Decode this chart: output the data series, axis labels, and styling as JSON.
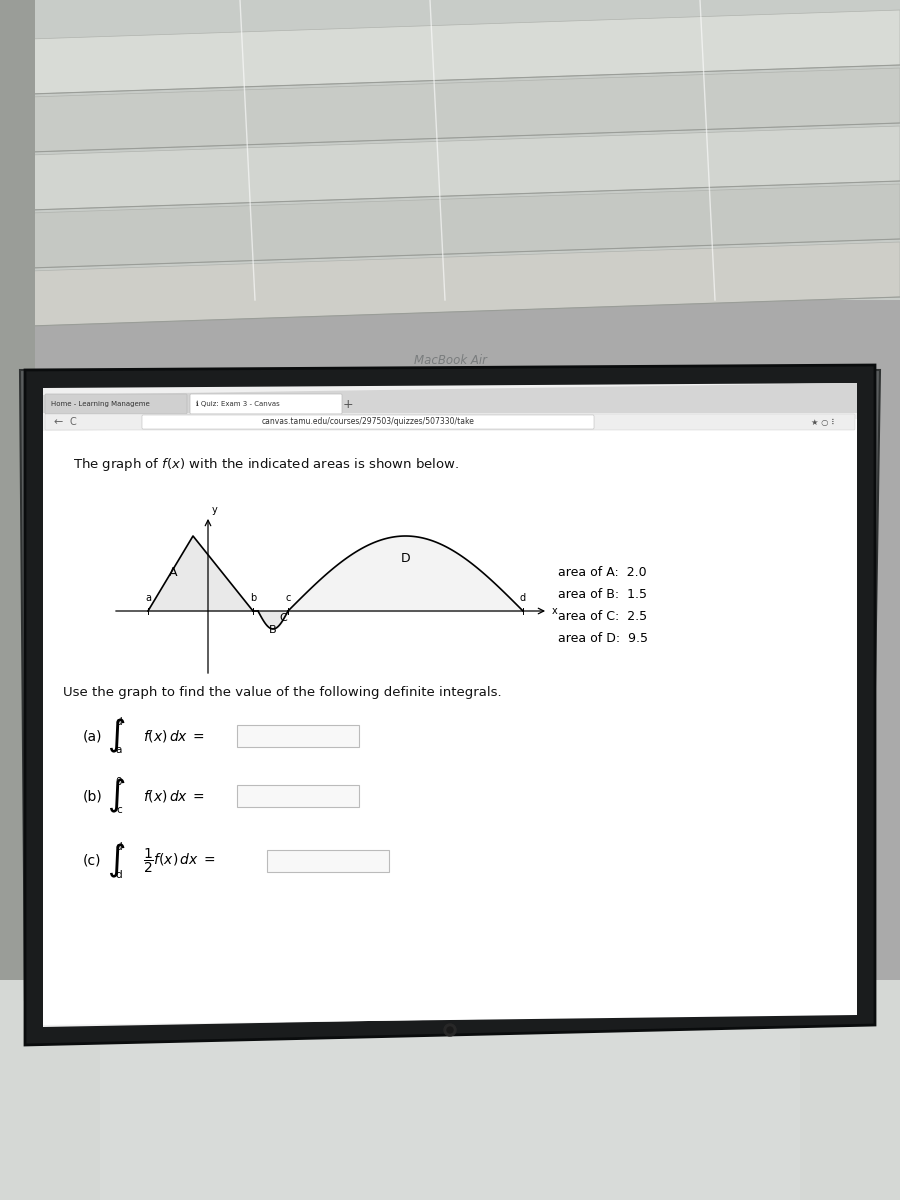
{
  "bg_top_color": "#c8ccc8",
  "blind_colors": [
    "#d5d8d3",
    "#cacdc8",
    "#d0d3ce",
    "#c5c8c3",
    "#d8dbd6"
  ],
  "blind_shadow": "#a8aba6",
  "laptop_body_color": "#5a5d5e",
  "laptop_edge_color": "#3a3d3e",
  "screen_bezel_color": "#1a1c1d",
  "screen_bg_color": "#f2f2f2",
  "browser_chrome_color": "#e8e8e8",
  "tab_bar_color": "#d8d8d8",
  "active_tab_color": "#ffffff",
  "inactive_tab_color": "#c8c8c8",
  "content_bg": "#ffffff",
  "url": "canvas.tamu.edu/courses/297503/quizzes/507330/take",
  "tab1": "Home - Learning Manageme",
  "tab2": "Quiz: Exam 3 - Canvas",
  "title": "The graph of $f(x)$ with the indicated areas is shown below.",
  "area_A": "area of A:  2.0",
  "area_B": "area of B:  1.5",
  "area_C": "area of C:  2.5",
  "area_D": "area of D:  9.5",
  "use_text": "Use the graph to find the value of the following definite integrals.",
  "macbook_text": "MacBook Air",
  "desk_color": "#d8dbd8",
  "keyboard_color": "#4a4d4e",
  "key_color": "#3d4042",
  "key_face_color": "#555859",
  "touchpad_color": "#505355",
  "cable_color": "#d0d0d0"
}
